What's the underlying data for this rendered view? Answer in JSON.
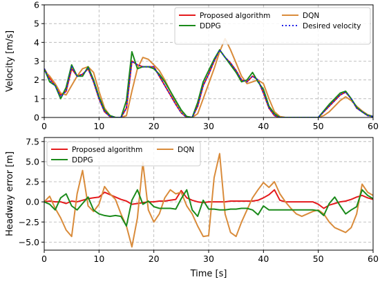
{
  "chart_data": [
    {
      "type": "line",
      "ylabel": "Velocity [m/s]",
      "xlabel": "",
      "xlim": [
        0,
        60
      ],
      "ylim": [
        0,
        6
      ],
      "xticks": [
        "0",
        "10",
        "20",
        "30",
        "40",
        "50",
        "60"
      ],
      "yticks": [
        "0",
        "1",
        "2",
        "3",
        "4",
        "5",
        "6"
      ],
      "grid": true,
      "legend_position": "top-right",
      "series": [
        {
          "name": "Proposed algorithm",
          "color": "#e41a1c",
          "style": "solid",
          "x": [
            0,
            1,
            2,
            3,
            4,
            5,
            6,
            7,
            8,
            9,
            10,
            11,
            12,
            13,
            14,
            15,
            16,
            17,
            18,
            19,
            20,
            21,
            22,
            23,
            24,
            25,
            26,
            27,
            28,
            29,
            30,
            31,
            32,
            33,
            34,
            35,
            36,
            37,
            38,
            39,
            40,
            41,
            42,
            43,
            44,
            45,
            46,
            47,
            48,
            49,
            50,
            51,
            52,
            53,
            54,
            55,
            56,
            57,
            58,
            59,
            60
          ],
          "y": [
            2.6,
            2.1,
            1.7,
            1.2,
            1.4,
            2.6,
            2.2,
            2.3,
            2.6,
            1.9,
            1.0,
            0.3,
            0.05,
            0,
            0,
            0.5,
            3.0,
            2.8,
            2.7,
            2.7,
            2.7,
            2.2,
            1.7,
            1.2,
            0.7,
            0.25,
            0,
            0,
            0.6,
            1.7,
            2.3,
            3.0,
            3.6,
            3.2,
            2.9,
            2.5,
            2.0,
            1.9,
            2.2,
            2.0,
            1.3,
            0.5,
            0.1,
            0,
            0,
            0,
            0,
            0,
            0,
            0,
            0,
            0.3,
            0.6,
            0.9,
            1.2,
            1.35,
            1.0,
            0.5,
            0.3,
            0.1,
            0.05
          ]
        },
        {
          "name": "DQN",
          "color": "#d98b3a",
          "style": "solid",
          "x": [
            0,
            1,
            2,
            3,
            4,
            5,
            6,
            7,
            8,
            9,
            10,
            11,
            12,
            13,
            14,
            15,
            16,
            17,
            18,
            19,
            20,
            21,
            22,
            23,
            24,
            25,
            26,
            27,
            28,
            29,
            30,
            31,
            32,
            33,
            34,
            35,
            36,
            37,
            38,
            39,
            40,
            41,
            42,
            43,
            44,
            45,
            46,
            47,
            48,
            49,
            50,
            51,
            52,
            53,
            54,
            55,
            56,
            57,
            58,
            59,
            60
          ],
          "y": [
            2.5,
            2.2,
            1.8,
            1.3,
            1.2,
            1.7,
            2.2,
            2.6,
            2.7,
            2.4,
            1.4,
            0.5,
            0.1,
            0,
            0,
            0.1,
            1.4,
            2.6,
            3.2,
            3.1,
            2.8,
            2.5,
            2.0,
            1.4,
            0.8,
            0.3,
            0.05,
            0,
            0.2,
            1.0,
            1.8,
            2.6,
            3.5,
            4.2,
            3.6,
            2.9,
            2.2,
            1.8,
            1.9,
            2.0,
            1.8,
            1.0,
            0.3,
            0.05,
            0,
            0,
            0,
            0,
            0,
            0,
            0,
            0.1,
            0.3,
            0.6,
            0.9,
            1.1,
            0.9,
            0.6,
            0.35,
            0.15,
            0.05
          ]
        },
        {
          "name": "DDPG",
          "color": "#1a8a1a",
          "style": "solid",
          "x": [
            0,
            1,
            2,
            3,
            4,
            5,
            6,
            7,
            8,
            9,
            10,
            11,
            12,
            13,
            14,
            15,
            16,
            17,
            18,
            19,
            20,
            21,
            22,
            23,
            24,
            25,
            26,
            27,
            28,
            29,
            30,
            31,
            32,
            33,
            34,
            35,
            36,
            37,
            38,
            39,
            40,
            41,
            42,
            43,
            44,
            45,
            46,
            47,
            48,
            49,
            50,
            51,
            52,
            53,
            54,
            55,
            56,
            57,
            58,
            59,
            60
          ],
          "y": [
            2.6,
            1.9,
            1.7,
            1.0,
            1.6,
            2.8,
            2.2,
            2.2,
            2.7,
            2.0,
            1.1,
            0.4,
            0.1,
            0,
            0,
            0.9,
            3.5,
            2.6,
            2.7,
            2.7,
            2.6,
            2.3,
            1.9,
            1.4,
            0.9,
            0.4,
            0.05,
            0,
            0.8,
            1.9,
            2.5,
            3.1,
            3.6,
            3.2,
            2.8,
            2.4,
            1.9,
            2.0,
            2.4,
            1.9,
            1.5,
            0.6,
            0.2,
            0,
            0,
            0,
            0,
            0,
            0,
            0,
            0,
            0.35,
            0.7,
            1.0,
            1.3,
            1.4,
            1.0,
            0.55,
            0.3,
            0.12,
            0.05
          ]
        },
        {
          "name": "Desired velocity",
          "color": "#1f1fe6",
          "style": "dotted",
          "x": [
            0,
            1,
            2,
            3,
            4,
            5,
            6,
            7,
            8,
            9,
            10,
            11,
            12,
            13,
            14,
            15,
            16,
            17,
            18,
            19,
            20,
            21,
            22,
            23,
            24,
            25,
            26,
            27,
            28,
            29,
            30,
            31,
            32,
            33,
            34,
            35,
            36,
            37,
            38,
            39,
            40,
            41,
            42,
            43,
            44,
            45,
            46,
            47,
            48,
            49,
            50,
            51,
            52,
            53,
            54,
            55,
            56,
            57,
            58,
            59,
            60
          ],
          "y": [
            2.6,
            2.0,
            1.7,
            1.1,
            1.4,
            2.7,
            2.2,
            2.3,
            2.6,
            1.9,
            1.0,
            0.3,
            0.05,
            0,
            0,
            0.5,
            3.0,
            2.8,
            2.7,
            2.7,
            2.7,
            2.2,
            1.7,
            1.2,
            0.7,
            0.25,
            0,
            0,
            0.6,
            1.7,
            2.3,
            3.0,
            3.6,
            3.2,
            2.9,
            2.5,
            2.0,
            1.9,
            2.2,
            2.0,
            1.3,
            0.5,
            0.1,
            0,
            0,
            0,
            0,
            0,
            0,
            0,
            0,
            0.3,
            0.6,
            0.9,
            1.2,
            1.35,
            1.0,
            0.5,
            0.3,
            0.1,
            0.05
          ]
        }
      ]
    },
    {
      "type": "line",
      "ylabel": "Headway error [m]",
      "xlabel": "Time [s]",
      "xlim": [
        0,
        60
      ],
      "ylim": [
        -6,
        8
      ],
      "xticks": [
        "0",
        "10",
        "20",
        "30",
        "40",
        "50",
        "60"
      ],
      "yticks": [
        "−5.0",
        "−2.5",
        "0.0",
        "2.5",
        "5.0",
        "7.5"
      ],
      "ytick_values": [
        -5,
        -2.5,
        0,
        2.5,
        5,
        7.5
      ],
      "grid": true,
      "legend_position": "top-left",
      "series": [
        {
          "name": "Proposed algorithm",
          "color": "#e41a1c",
          "style": "solid",
          "x": [
            0,
            1,
            2,
            3,
            4,
            5,
            6,
            7,
            8,
            9,
            10,
            11,
            12,
            13,
            14,
            15,
            16,
            17,
            18,
            19,
            20,
            21,
            22,
            23,
            24,
            25,
            26,
            27,
            28,
            29,
            30,
            31,
            32,
            33,
            34,
            35,
            36,
            37,
            38,
            39,
            40,
            41,
            42,
            43,
            44,
            45,
            46,
            47,
            48,
            49,
            50,
            51,
            52,
            53,
            54,
            55,
            56,
            57,
            58,
            59,
            60
          ],
          "y": [
            0,
            0.1,
            0,
            0,
            -0.2,
            0.1,
            0,
            0.2,
            0.4,
            0.5,
            0.6,
            1.2,
            0.9,
            0.6,
            0.3,
            0.1,
            -0.3,
            -0.2,
            -0.1,
            0,
            0,
            0.1,
            0.1,
            0.2,
            0.3,
            1.4,
            0.5,
            0.2,
            0,
            -0.1,
            0,
            0,
            0,
            0,
            0.1,
            0.1,
            0.1,
            0.1,
            0.1,
            0.2,
            0.5,
            0.9,
            1.5,
            0.2,
            0,
            0,
            0,
            0,
            0,
            0,
            -0.3,
            -0.8,
            -0.4,
            -0.2,
            0,
            0.1,
            0.3,
            0.6,
            0.8,
            0.5,
            0.3
          ]
        },
        {
          "name": "DQN",
          "color": "#d98b3a",
          "style": "solid",
          "x": [
            0,
            1,
            2,
            3,
            4,
            5,
            6,
            7,
            8,
            9,
            10,
            11,
            12,
            13,
            14,
            15,
            16,
            17,
            18,
            19,
            20,
            21,
            22,
            23,
            24,
            25,
            26,
            27,
            28,
            29,
            30,
            31,
            32,
            33,
            34,
            35,
            36,
            37,
            38,
            39,
            40,
            41,
            42,
            43,
            44,
            45,
            46,
            47,
            48,
            49,
            50,
            51,
            52,
            53,
            54,
            55,
            56,
            57,
            58,
            59,
            60
          ],
          "y": [
            0,
            0.7,
            -0.8,
            -2.0,
            -3.5,
            -4.3,
            1.0,
            3.9,
            -0.5,
            -1.2,
            -0.3,
            1.9,
            1.0,
            0.3,
            -1.5,
            -3.0,
            -5.6,
            -2.0,
            4.9,
            -1.0,
            -2.5,
            -1.5,
            0.5,
            1.5,
            1.0,
            1.2,
            -0.5,
            -1.5,
            -3.0,
            -4.3,
            -4.2,
            3.0,
            6.0,
            -1.5,
            -3.8,
            -4.3,
            -2.5,
            -1.0,
            0.5,
            1.5,
            2.4,
            1.8,
            2.5,
            1.0,
            0,
            -0.8,
            -1.5,
            -1.8,
            -1.5,
            -1.2,
            -1.0,
            -1.5,
            -2.5,
            -3.2,
            -3.5,
            -3.8,
            -3.2,
            -1.5,
            2.2,
            1.2,
            0.8
          ]
        },
        {
          "name": "DDPG",
          "color": "#1a8a1a",
          "style": "solid",
          "x": [
            0,
            1,
            2,
            3,
            4,
            5,
            6,
            7,
            8,
            9,
            10,
            11,
            12,
            13,
            14,
            15,
            16,
            17,
            18,
            19,
            20,
            21,
            22,
            23,
            24,
            25,
            26,
            27,
            28,
            29,
            30,
            31,
            32,
            33,
            34,
            35,
            36,
            37,
            38,
            39,
            40,
            41,
            42,
            43,
            44,
            45,
            46,
            47,
            48,
            49,
            50,
            51,
            52,
            53,
            54,
            55,
            56,
            57,
            58,
            59,
            60
          ],
          "y": [
            0,
            -0.3,
            -1.0,
            0.5,
            1.0,
            -0.5,
            -1.0,
            -0.2,
            0.6,
            -1.0,
            -1.5,
            -1.7,
            -1.8,
            -1.7,
            -1.8,
            -3.0,
            0.2,
            1.5,
            -0.3,
            0.1,
            -0.6,
            -0.8,
            -0.8,
            -0.8,
            -0.9,
            0.4,
            1.5,
            -1.0,
            -1.8,
            0.2,
            -0.9,
            -0.9,
            -1.0,
            -1.0,
            -0.9,
            -0.9,
            -0.8,
            -0.8,
            -1.0,
            -1.6,
            -0.5,
            -1.0,
            -1.0,
            -1.0,
            -1.0,
            -1.0,
            -1.0,
            -1.0,
            -1.0,
            -1.0,
            -1.1,
            -1.7,
            -0.2,
            0.6,
            -0.5,
            -1.5,
            -1.0,
            -0.6,
            1.5,
            0.8,
            0.4
          ]
        }
      ]
    }
  ]
}
